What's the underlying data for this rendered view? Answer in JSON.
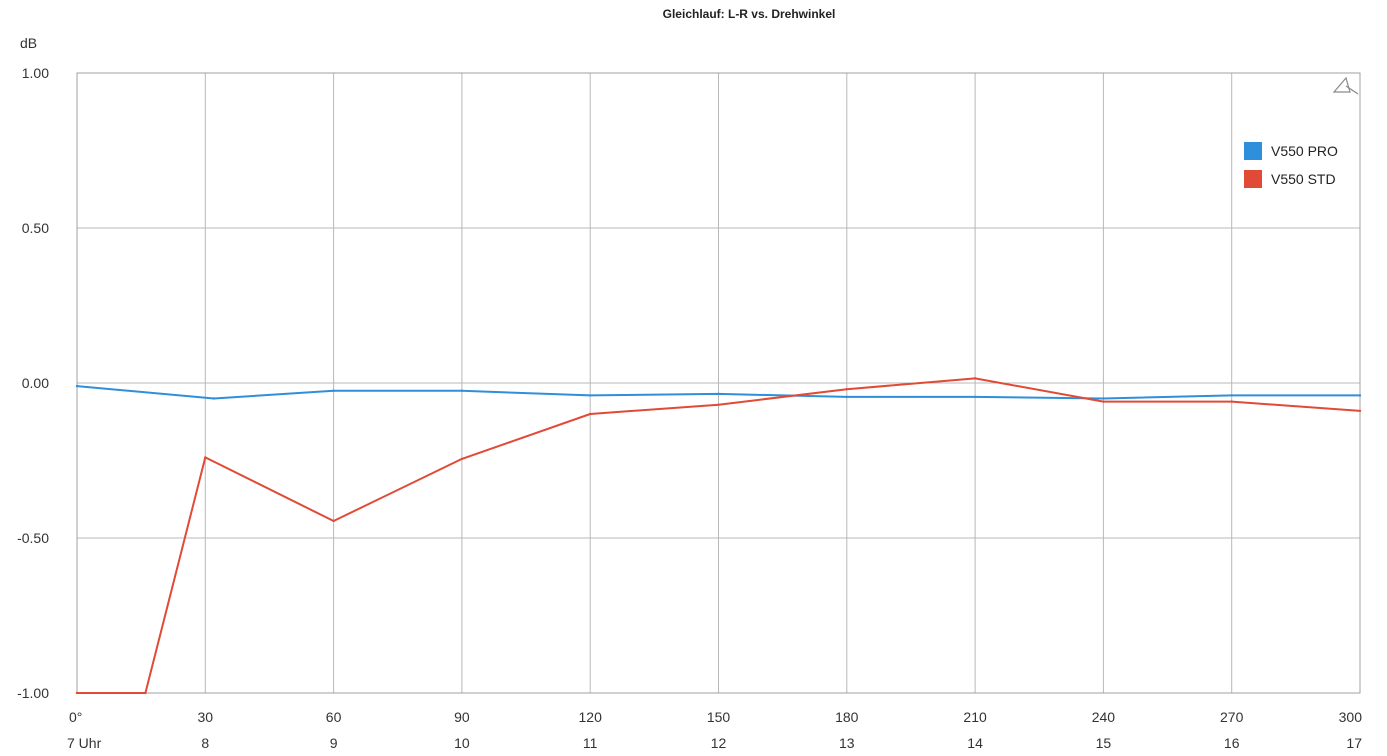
{
  "chart_data": {
    "type": "line",
    "title": "Gleichlauf: L-R vs. Drehwinkel",
    "ylabel": "dB",
    "x": [
      0,
      30,
      60,
      90,
      120,
      150,
      180,
      210,
      240,
      270,
      300
    ],
    "x_tick_labels": [
      "0°",
      "30",
      "60",
      "90",
      "120",
      "150",
      "180",
      "210",
      "240",
      "270",
      "300"
    ],
    "x_secondary_tick_labels": [
      "7 Uhr",
      "8",
      "9",
      "10",
      "11",
      "12",
      "13",
      "14",
      "15",
      "16",
      "17"
    ],
    "xlim": [
      0,
      300
    ],
    "ylim": [
      -1.0,
      1.0
    ],
    "y_ticks": [
      1.0,
      0.5,
      0.0,
      -0.5,
      -1.0
    ],
    "y_tick_labels": [
      "1.00",
      "0.50",
      "0.00",
      "-0.50",
      "-1.00"
    ],
    "grid": true,
    "legend_position": "top-right",
    "series": [
      {
        "name": "V550 PRO",
        "color": "#2e8fdc",
        "x": [
          0,
          32,
          60,
          90,
          120,
          150,
          180,
          210,
          240,
          270,
          300
        ],
        "values": [
          -0.01,
          -0.05,
          -0.025,
          -0.025,
          -0.04,
          -0.035,
          -0.045,
          -0.045,
          -0.05,
          -0.04,
          -0.04
        ]
      },
      {
        "name": "V550 STD",
        "color": "#e04a36",
        "x": [
          0,
          16,
          30,
          60,
          90,
          120,
          150,
          180,
          210,
          240,
          270,
          300
        ],
        "values": [
          -1.0,
          -1.0,
          -0.24,
          -0.445,
          -0.245,
          -0.1,
          -0.07,
          -0.02,
          0.015,
          -0.06,
          -0.06,
          -0.09
        ]
      }
    ],
    "corner_icon": "triangle-icon"
  }
}
